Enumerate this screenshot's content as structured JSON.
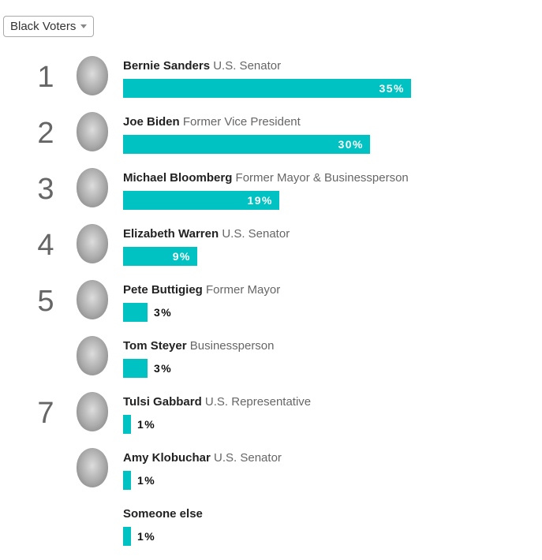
{
  "filter": {
    "selected": "Black Voters",
    "icon": "caret-down-icon"
  },
  "colors": {
    "bar": "#00c2c2"
  },
  "chart_data": {
    "type": "bar",
    "orientation": "horizontal",
    "value_unit": "%",
    "rows": [
      {
        "rank": "1",
        "name": "Bernie Sanders",
        "title": "U.S. Senator",
        "value": 35,
        "label": "35%",
        "photo": true
      },
      {
        "rank": "2",
        "name": "Joe Biden",
        "title": "Former Vice President",
        "value": 30,
        "label": "30%",
        "photo": true
      },
      {
        "rank": "3",
        "name": "Michael Bloomberg",
        "title": "Former Mayor & Businessperson",
        "value": 19,
        "label": "19%",
        "photo": true
      },
      {
        "rank": "4",
        "name": "Elizabeth Warren",
        "title": "U.S. Senator",
        "value": 9,
        "label": "9%",
        "photo": true
      },
      {
        "rank": "5",
        "name": "Pete Buttigieg",
        "title": "Former Mayor",
        "value": 3,
        "label": "3%",
        "photo": true
      },
      {
        "rank": "",
        "name": "Tom Steyer",
        "title": "Businessperson",
        "value": 3,
        "label": "3%",
        "photo": true
      },
      {
        "rank": "7",
        "name": "Tulsi Gabbard",
        "title": "U.S. Representative",
        "value": 1,
        "label": "1%",
        "photo": true
      },
      {
        "rank": "",
        "name": "Amy Klobuchar",
        "title": "U.S. Senator",
        "value": 1,
        "label": "1%",
        "photo": true
      },
      {
        "rank": "",
        "name": "Someone else",
        "title": "",
        "value": 1,
        "label": "1%",
        "photo": false
      }
    ]
  }
}
